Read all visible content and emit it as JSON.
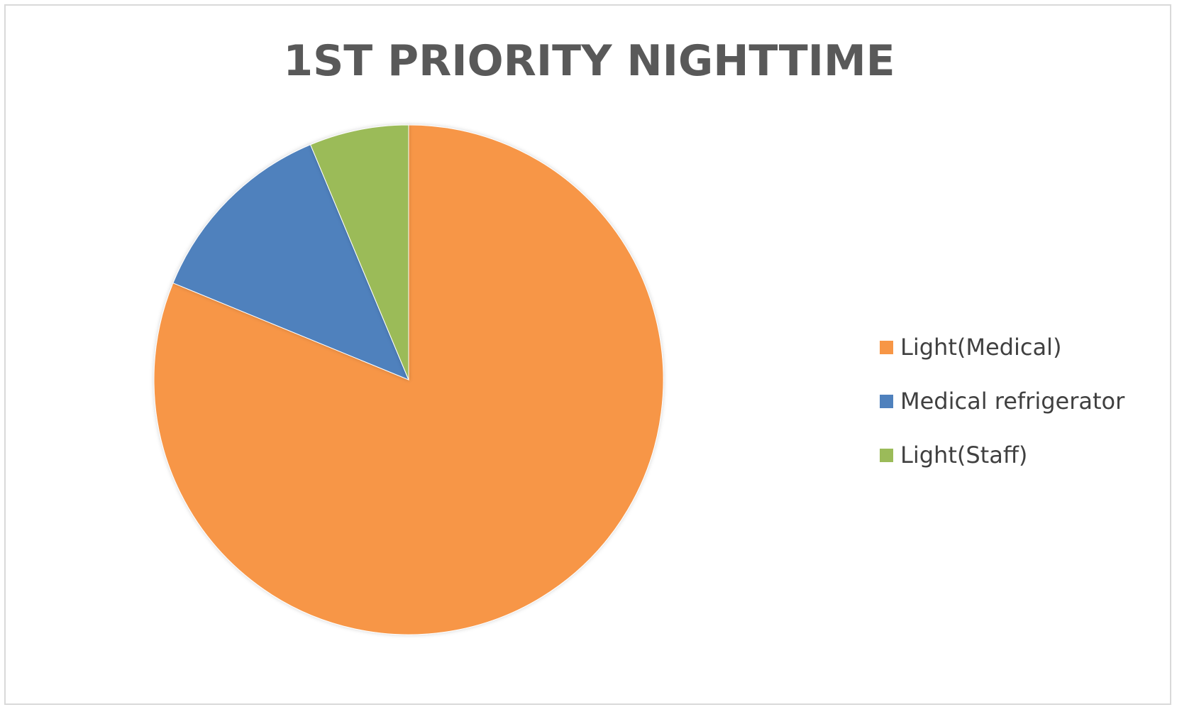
{
  "chart_data": {
    "type": "pie",
    "title": "1ST PRIORITY NIGHTTIME",
    "categories": [
      "Light(Medical)",
      "Medical refrigerator",
      "Light(Staff)"
    ],
    "values": [
      81.2,
      12.5,
      6.3
    ],
    "colors": [
      "#F79646",
      "#4F81BD",
      "#9BBB59"
    ],
    "legend_position": "right"
  }
}
